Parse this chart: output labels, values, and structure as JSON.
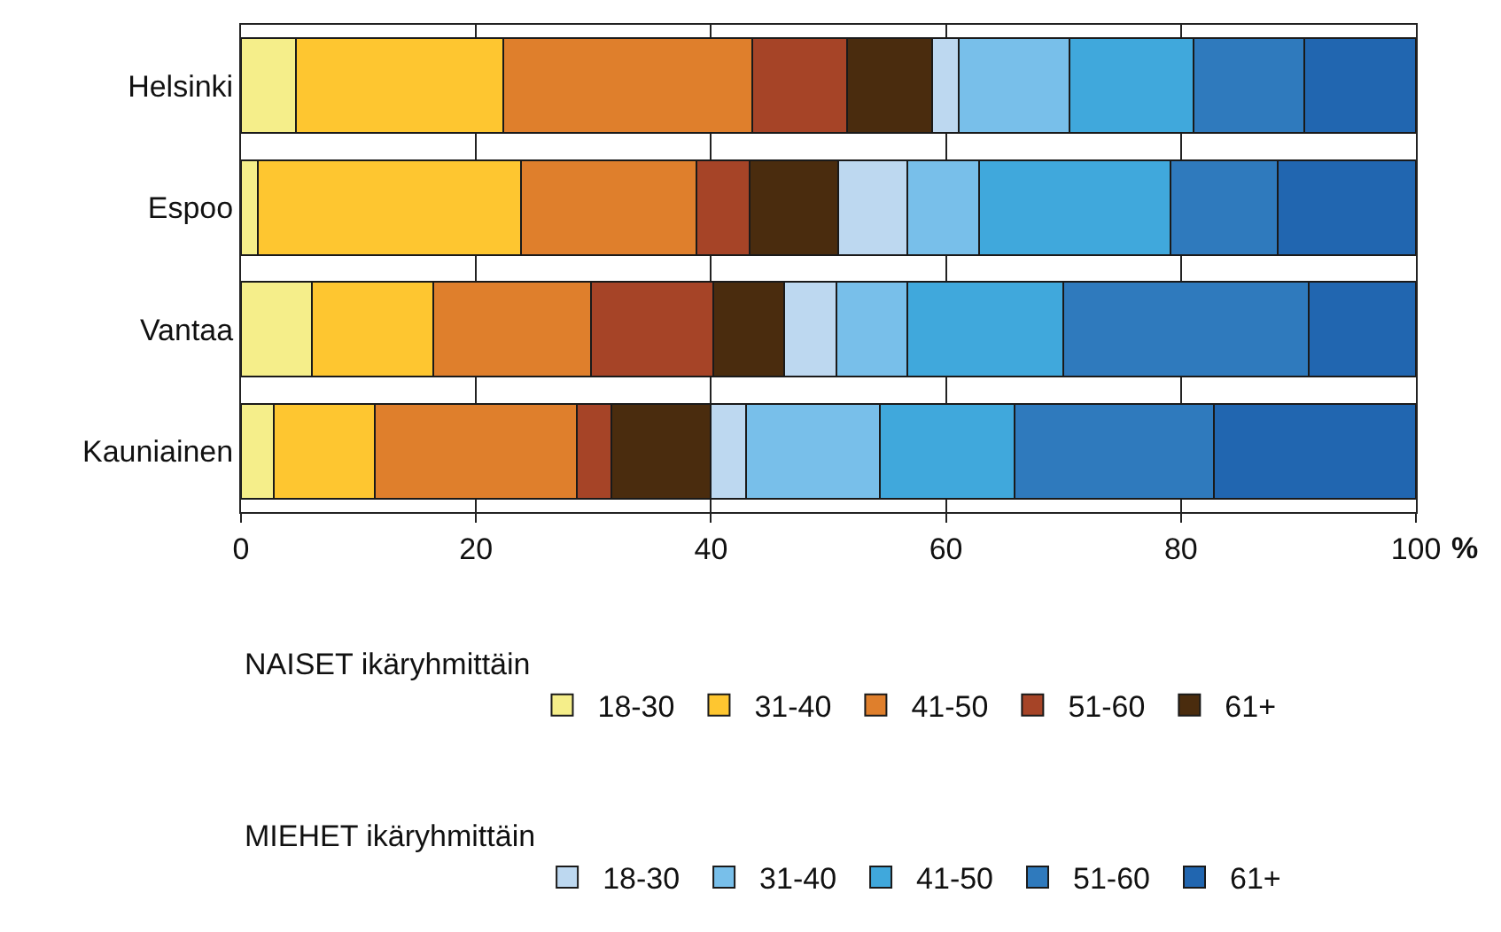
{
  "chart_data": {
    "type": "bar",
    "orientation": "horizontal",
    "stacked": true,
    "xlabel": "%",
    "categories": [
      "Helsinki",
      "Espoo",
      "Vantaa",
      "Kauniainen"
    ],
    "legend_title": [
      "NAISET ikäryhmittäin",
      "MIEHET ikäryhmittäin"
    ],
    "series": [
      {
        "name": "18-30",
        "color": "#f5ee8a",
        "values": [
          4.7,
          1.4,
          6.0,
          2.8
        ]
      },
      {
        "name": "31-40",
        "color": "#fec630",
        "values": [
          17.6,
          22.4,
          10.4,
          8.6
        ]
      },
      {
        "name": "41-50",
        "color": "#df7f2c",
        "values": [
          21.2,
          15.0,
          13.4,
          17.2
        ]
      },
      {
        "name": "51-60",
        "color": "#a64427",
        "values": [
          8.1,
          4.5,
          10.4,
          2.9
        ]
      },
      {
        "name": "61+",
        "color": "#4a2c0e",
        "values": [
          7.2,
          7.5,
          6.0,
          8.5
        ]
      },
      {
        "name": "18-30",
        "color": "#bdd8f0",
        "values": [
          2.3,
          5.9,
          4.5,
          3.0
        ]
      },
      {
        "name": "31-40",
        "color": "#78bfea",
        "values": [
          9.4,
          6.1,
          6.0,
          11.4
        ]
      },
      {
        "name": "41-50",
        "color": "#40a8dc",
        "values": [
          10.6,
          16.3,
          13.3,
          11.4
        ]
      },
      {
        "name": "51-60",
        "color": "#2f7abd",
        "values": [
          9.4,
          9.1,
          20.9,
          17.0
        ]
      },
      {
        "name": "61+",
        "color": "#2166b0",
        "values": [
          9.5,
          11.8,
          9.1,
          17.2
        ]
      }
    ],
    "xlim": [
      0,
      100
    ],
    "xticks": [
      0,
      20,
      40,
      60,
      80,
      100
    ],
    "grid": "x",
    "legend": "bottom"
  }
}
